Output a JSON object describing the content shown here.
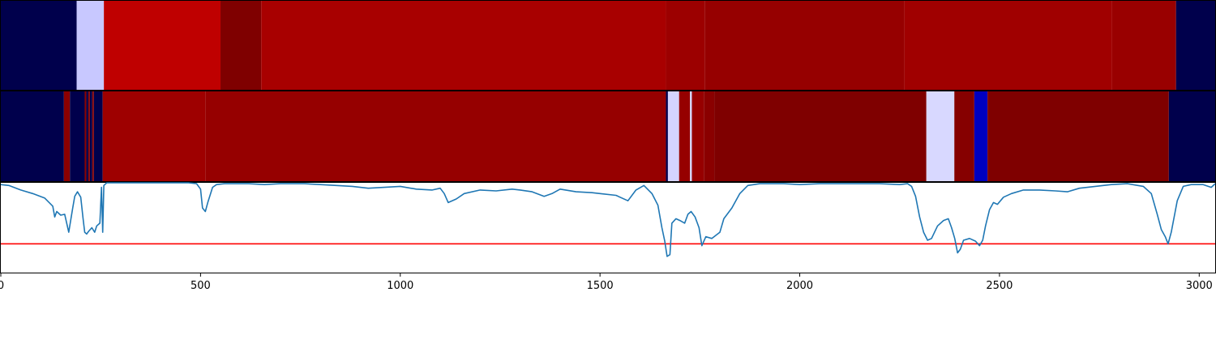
{
  "chart_data": {
    "type": "heatmap",
    "x_range": [
      0,
      3040
    ],
    "x_ticks": [
      0,
      500,
      1000,
      1500,
      2000,
      2500,
      3000
    ],
    "x_tick_labels": [
      "0",
      "500",
      "1000",
      "1500",
      "2000",
      "2500",
      "3000"
    ],
    "colormap": "seismic",
    "track_1": {
      "segments": [
        {
          "start": 0,
          "end": 190,
          "color": "#00004c"
        },
        {
          "start": 190,
          "end": 258,
          "color": "#c8c8ff"
        },
        {
          "start": 258,
          "end": 550,
          "color": "#bf0000"
        },
        {
          "start": 550,
          "end": 652,
          "color": "#7f0000"
        },
        {
          "start": 652,
          "end": 1665,
          "color": "#a80000"
        },
        {
          "start": 1665,
          "end": 1762,
          "color": "#9c0000"
        },
        {
          "start": 1762,
          "end": 2262,
          "color": "#960000"
        },
        {
          "start": 2262,
          "end": 2782,
          "color": "#a00000"
        },
        {
          "start": 2782,
          "end": 2942,
          "color": "#990000"
        },
        {
          "start": 2942,
          "end": 3040,
          "color": "#00004c"
        }
      ]
    },
    "track_2": {
      "segments": [
        {
          "start": 0,
          "end": 158,
          "color": "#00004c"
        },
        {
          "start": 158,
          "end": 173,
          "color": "#8c0000"
        },
        {
          "start": 173,
          "end": 210,
          "color": "#00004c"
        },
        {
          "start": 210,
          "end": 214,
          "color": "#8c0000"
        },
        {
          "start": 214,
          "end": 219,
          "color": "#00004c"
        },
        {
          "start": 219,
          "end": 223,
          "color": "#8c0000"
        },
        {
          "start": 223,
          "end": 229,
          "color": "#00004c"
        },
        {
          "start": 229,
          "end": 233,
          "color": "#8c0000"
        },
        {
          "start": 233,
          "end": 255,
          "color": "#00004c"
        },
        {
          "start": 255,
          "end": 512,
          "color": "#9e0000"
        },
        {
          "start": 512,
          "end": 1665,
          "color": "#960000"
        },
        {
          "start": 1665,
          "end": 1670,
          "color": "#00004c"
        },
        {
          "start": 1670,
          "end": 1698,
          "color": "#d4d4ff"
        },
        {
          "start": 1698,
          "end": 1725,
          "color": "#960000"
        },
        {
          "start": 1725,
          "end": 1730,
          "color": "#d4d4ff"
        },
        {
          "start": 1730,
          "end": 1760,
          "color": "#960000"
        },
        {
          "start": 1760,
          "end": 1786,
          "color": "#8a0000"
        },
        {
          "start": 1786,
          "end": 2317,
          "color": "#7f0000"
        },
        {
          "start": 2317,
          "end": 2387,
          "color": "#d8d8ff"
        },
        {
          "start": 2387,
          "end": 2437,
          "color": "#860000"
        },
        {
          "start": 2437,
          "end": 2470,
          "color": "#0000c0"
        },
        {
          "start": 2470,
          "end": 2924,
          "color": "#7f0000"
        },
        {
          "start": 2924,
          "end": 3040,
          "color": "#00004c"
        }
      ]
    },
    "line_panel": {
      "y_range": [
        0,
        1
      ],
      "line_color": "#1f77b4",
      "threshold": 0.32,
      "threshold_color": "#ff0000",
      "points": [
        [
          0,
          0.98
        ],
        [
          20,
          0.97
        ],
        [
          50,
          0.92
        ],
        [
          80,
          0.88
        ],
        [
          110,
          0.83
        ],
        [
          130,
          0.74
        ],
        [
          135,
          0.62
        ],
        [
          140,
          0.68
        ],
        [
          150,
          0.64
        ],
        [
          160,
          0.65
        ],
        [
          170,
          0.45
        ],
        [
          180,
          0.72
        ],
        [
          185,
          0.85
        ],
        [
          192,
          0.9
        ],
        [
          200,
          0.84
        ],
        [
          206,
          0.6
        ],
        [
          210,
          0.45
        ],
        [
          215,
          0.43
        ],
        [
          220,
          0.46
        ],
        [
          228,
          0.5
        ],
        [
          235,
          0.45
        ],
        [
          240,
          0.52
        ],
        [
          248,
          0.55
        ],
        [
          252,
          0.95
        ],
        [
          255,
          0.45
        ],
        [
          258,
          0.97
        ],
        [
          265,
          1.0
        ],
        [
          470,
          1.0
        ],
        [
          490,
          0.99
        ],
        [
          500,
          0.93
        ],
        [
          505,
          0.72
        ],
        [
          512,
          0.68
        ],
        [
          518,
          0.78
        ],
        [
          530,
          0.95
        ],
        [
          540,
          0.98
        ],
        [
          560,
          0.99
        ],
        [
          620,
          0.99
        ],
        [
          660,
          0.98
        ],
        [
          700,
          0.99
        ],
        [
          760,
          0.99
        ],
        [
          800,
          0.98
        ],
        [
          840,
          0.97
        ],
        [
          880,
          0.96
        ],
        [
          920,
          0.94
        ],
        [
          960,
          0.95
        ],
        [
          1000,
          0.96
        ],
        [
          1040,
          0.93
        ],
        [
          1080,
          0.92
        ],
        [
          1100,
          0.94
        ],
        [
          1110,
          0.88
        ],
        [
          1120,
          0.78
        ],
        [
          1140,
          0.82
        ],
        [
          1160,
          0.88
        ],
        [
          1200,
          0.92
        ],
        [
          1240,
          0.91
        ],
        [
          1280,
          0.93
        ],
        [
          1300,
          0.92
        ],
        [
          1330,
          0.9
        ],
        [
          1360,
          0.85
        ],
        [
          1380,
          0.88
        ],
        [
          1400,
          0.93
        ],
        [
          1440,
          0.9
        ],
        [
          1480,
          0.89
        ],
        [
          1500,
          0.88
        ],
        [
          1540,
          0.86
        ],
        [
          1570,
          0.8
        ],
        [
          1590,
          0.92
        ],
        [
          1610,
          0.97
        ],
        [
          1630,
          0.88
        ],
        [
          1645,
          0.75
        ],
        [
          1655,
          0.5
        ],
        [
          1662,
          0.35
        ],
        [
          1668,
          0.18
        ],
        [
          1675,
          0.2
        ],
        [
          1680,
          0.55
        ],
        [
          1690,
          0.6
        ],
        [
          1700,
          0.58
        ],
        [
          1712,
          0.55
        ],
        [
          1720,
          0.65
        ],
        [
          1728,
          0.68
        ],
        [
          1738,
          0.62
        ],
        [
          1748,
          0.5
        ],
        [
          1755,
          0.3
        ],
        [
          1765,
          0.4
        ],
        [
          1780,
          0.38
        ],
        [
          1800,
          0.45
        ],
        [
          1810,
          0.6
        ],
        [
          1830,
          0.72
        ],
        [
          1850,
          0.88
        ],
        [
          1870,
          0.97
        ],
        [
          1900,
          0.99
        ],
        [
          1960,
          0.99
        ],
        [
          2000,
          0.98
        ],
        [
          2050,
          0.99
        ],
        [
          2100,
          0.99
        ],
        [
          2150,
          0.99
        ],
        [
          2200,
          0.99
        ],
        [
          2250,
          0.98
        ],
        [
          2270,
          0.99
        ],
        [
          2280,
          0.96
        ],
        [
          2290,
          0.85
        ],
        [
          2300,
          0.62
        ],
        [
          2310,
          0.45
        ],
        [
          2320,
          0.36
        ],
        [
          2330,
          0.38
        ],
        [
          2345,
          0.52
        ],
        [
          2360,
          0.58
        ],
        [
          2372,
          0.6
        ],
        [
          2380,
          0.5
        ],
        [
          2388,
          0.38
        ],
        [
          2395,
          0.22
        ],
        [
          2402,
          0.26
        ],
        [
          2410,
          0.36
        ],
        [
          2425,
          0.38
        ],
        [
          2440,
          0.35
        ],
        [
          2450,
          0.3
        ],
        [
          2458,
          0.36
        ],
        [
          2465,
          0.52
        ],
        [
          2475,
          0.7
        ],
        [
          2485,
          0.78
        ],
        [
          2495,
          0.76
        ],
        [
          2510,
          0.84
        ],
        [
          2530,
          0.88
        ],
        [
          2560,
          0.92
        ],
        [
          2600,
          0.92
        ],
        [
          2640,
          0.91
        ],
        [
          2670,
          0.9
        ],
        [
          2700,
          0.94
        ],
        [
          2740,
          0.96
        ],
        [
          2780,
          0.98
        ],
        [
          2820,
          0.99
        ],
        [
          2860,
          0.96
        ],
        [
          2880,
          0.88
        ],
        [
          2895,
          0.65
        ],
        [
          2905,
          0.48
        ],
        [
          2915,
          0.4
        ],
        [
          2922,
          0.32
        ],
        [
          2930,
          0.45
        ],
        [
          2945,
          0.8
        ],
        [
          2960,
          0.96
        ],
        [
          2980,
          0.98
        ],
        [
          3010,
          0.98
        ],
        [
          3030,
          0.95
        ],
        [
          3040,
          0.99
        ]
      ]
    }
  }
}
